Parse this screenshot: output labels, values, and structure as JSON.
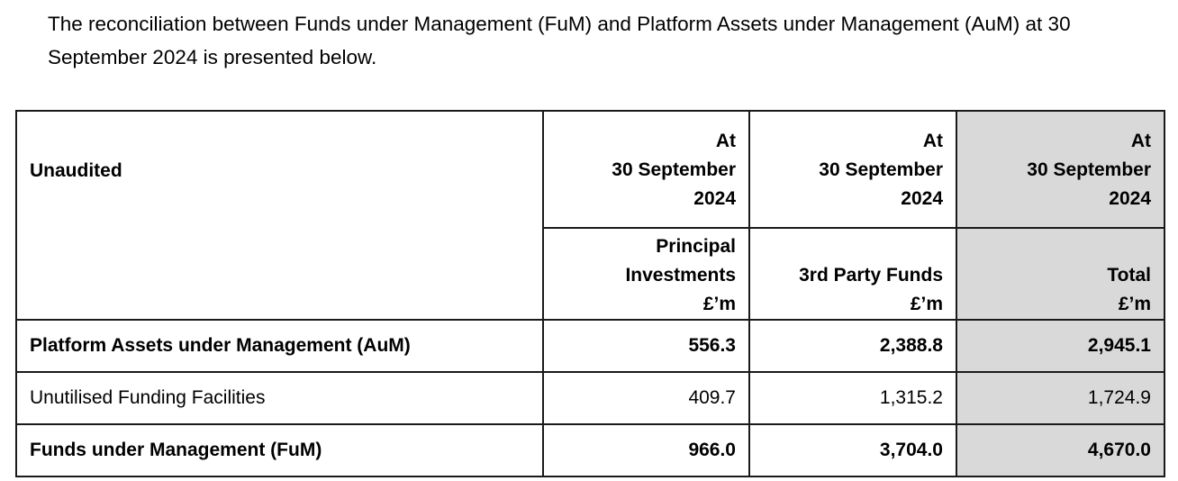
{
  "intro": {
    "text": "The reconciliation between Funds under Management (FuM) and Platform Assets under Management (AuM) at 30 September 2024 is presented below."
  },
  "table": {
    "corner_label": "Unaudited",
    "date_headers": [
      {
        "line1": "At",
        "line2": "30 September",
        "line3": "2024"
      },
      {
        "line1": "At",
        "line2": "30 September",
        "line3": "2024"
      },
      {
        "line1": "At",
        "line2": "30 September",
        "line3": "2024"
      }
    ],
    "column_headers": [
      {
        "line1": "Principal",
        "line2": "Investments",
        "unit": "£’m"
      },
      {
        "line1": "",
        "line2": "3rd Party Funds",
        "unit": "£’m"
      },
      {
        "line1": "",
        "line2": "Total",
        "unit": "£’m"
      }
    ],
    "rows": [
      {
        "label": "Platform Assets under Management (AuM)",
        "values": [
          "556.3",
          "2,388.8",
          "2,945.1"
        ],
        "bold": true
      },
      {
        "label": "Unutilised Funding Facilities",
        "values": [
          "409.7",
          "1,315.2",
          "1,724.9"
        ],
        "bold": false
      },
      {
        "label": "Funds under Management (FuM)",
        "values": [
          "966.0",
          "3,704.0",
          "4,670.0"
        ],
        "bold": true
      }
    ],
    "total_column_shade": "#d9d9d9"
  }
}
